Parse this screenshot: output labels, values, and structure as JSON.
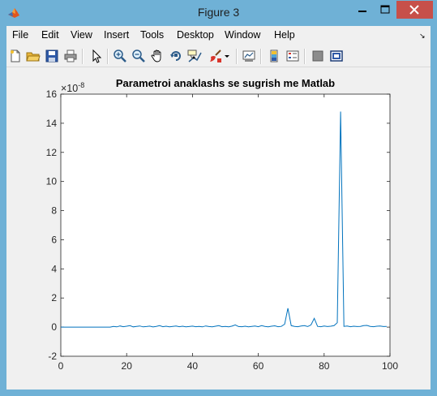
{
  "window": {
    "title": "Figure 3",
    "minimize_glyph": "—",
    "maximize_glyph": "☐",
    "close_glyph": "✕",
    "colors": {
      "frame": "#6fb1d6",
      "close": "#c7504a",
      "client": "#f0f0f0"
    }
  },
  "menubar": {
    "items": [
      "File",
      "Edit",
      "View",
      "Insert",
      "Tools",
      "Desktop",
      "Window",
      "Help"
    ],
    "dock_arrow": "↘"
  },
  "toolbar": {
    "icons": [
      "new-figure-icon",
      "open-file-icon",
      "save-icon",
      "print-icon",
      "edit-plot-arrow-icon",
      "zoom-in-icon",
      "zoom-out-icon",
      "pan-hand-icon",
      "rotate-3d-icon",
      "data-cursor-icon",
      "brush-icon",
      "brush-dropdown-icon",
      "link-plot-icon",
      "colorbar-icon",
      "legend-icon",
      "hide-plot-tools-icon",
      "show-plot-tools-icon"
    ]
  },
  "chart_data": {
    "type": "line",
    "title": "Parametroi anaklashs se sugrish me Matlab",
    "xlabel": "",
    "ylabel": "",
    "y_exponent_label": "×10",
    "y_exponent_power": "-8",
    "xlim": [
      0,
      100
    ],
    "ylim": [
      -2,
      16
    ],
    "xticks": [
      0,
      20,
      40,
      60,
      80,
      100
    ],
    "yticks": [
      -2,
      0,
      2,
      4,
      6,
      8,
      10,
      12,
      14,
      16
    ],
    "grid": false,
    "line_color": "#0072bd",
    "series": [
      {
        "x": [
          0,
          15,
          16,
          17,
          18,
          19,
          20,
          21,
          22,
          23,
          24,
          25,
          26,
          27,
          28,
          29,
          30,
          31,
          32,
          33,
          34,
          35,
          36,
          37,
          38,
          39,
          40,
          41,
          42,
          43,
          44,
          45,
          46,
          47,
          48,
          49,
          50,
          51,
          52,
          53,
          54,
          55,
          56,
          57,
          58,
          59,
          60,
          61,
          62,
          63,
          64,
          65,
          66,
          67,
          68,
          69,
          70,
          71,
          72,
          73,
          74,
          75,
          76,
          77,
          78,
          79,
          80,
          81,
          82,
          83,
          84,
          85,
          86,
          87,
          88,
          89,
          90,
          91,
          92,
          93,
          94,
          95,
          96,
          97,
          98,
          99
        ],
        "y": [
          0,
          0,
          0.05,
          0.02,
          0.08,
          0.03,
          0.06,
          0.1,
          0.02,
          0.05,
          0.08,
          0.02,
          0.04,
          0.07,
          0.01,
          0.05,
          0.1,
          0.03,
          0.06,
          0.02,
          0.05,
          0.08,
          0.03,
          0.06,
          0.02,
          0.04,
          0.07,
          0.03,
          0.05,
          0.02,
          0.08,
          0.04,
          0.02,
          0.06,
          0.1,
          0.03,
          0.05,
          0.02,
          0.07,
          0.15,
          0.04,
          0.03,
          0.06,
          0.02,
          0.05,
          0.08,
          0.03,
          0.1,
          0.05,
          0.02,
          0.06,
          0.09,
          0.03,
          0.05,
          0.2,
          1.3,
          0.1,
          0.05,
          0.03,
          0.08,
          0.1,
          0.04,
          0.15,
          0.6,
          0.05,
          0.03,
          0.08,
          0.04,
          0.06,
          0.1,
          0.3,
          14.8,
          0.05,
          0.08,
          0.03,
          0.06,
          0.04,
          0.05,
          0.1,
          0.12,
          0.05,
          0.03,
          0.06,
          0.08,
          0.04,
          0.05
        ]
      }
    ]
  }
}
